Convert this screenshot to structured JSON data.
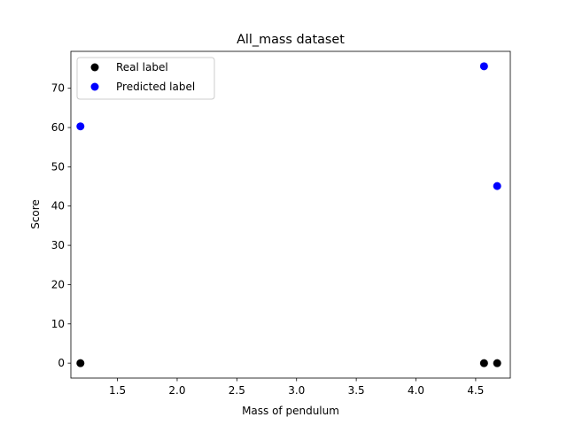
{
  "chart_data": {
    "type": "scatter",
    "title": "All_mass dataset",
    "xlabel": "Mass of pendulum",
    "ylabel": "Score",
    "xlim": [
      1.11,
      4.79
    ],
    "ylim": [
      -3.8,
      79.4
    ],
    "xticks": [
      1.5,
      2.0,
      2.5,
      3.0,
      3.5,
      4.0,
      4.5
    ],
    "xtick_labels": [
      "1.5",
      "2.0",
      "2.5",
      "3.0",
      "3.5",
      "4.0",
      "4.5"
    ],
    "yticks": [
      0,
      10,
      20,
      30,
      40,
      50,
      60,
      70
    ],
    "ytick_labels": [
      "0",
      "10",
      "20",
      "30",
      "40",
      "50",
      "60",
      "70"
    ],
    "grid": false,
    "legend_position": "top-left",
    "series": [
      {
        "name": "Real label",
        "color": "#000000",
        "points": [
          {
            "x": 1.19,
            "y": 0
          },
          {
            "x": 4.57,
            "y": 0
          },
          {
            "x": 4.68,
            "y": 0
          }
        ]
      },
      {
        "name": "Predicted label",
        "color": "#0000ff",
        "points": [
          {
            "x": 1.19,
            "y": 60.3
          },
          {
            "x": 4.57,
            "y": 75.6
          },
          {
            "x": 4.68,
            "y": 45.1
          }
        ]
      }
    ]
  }
}
